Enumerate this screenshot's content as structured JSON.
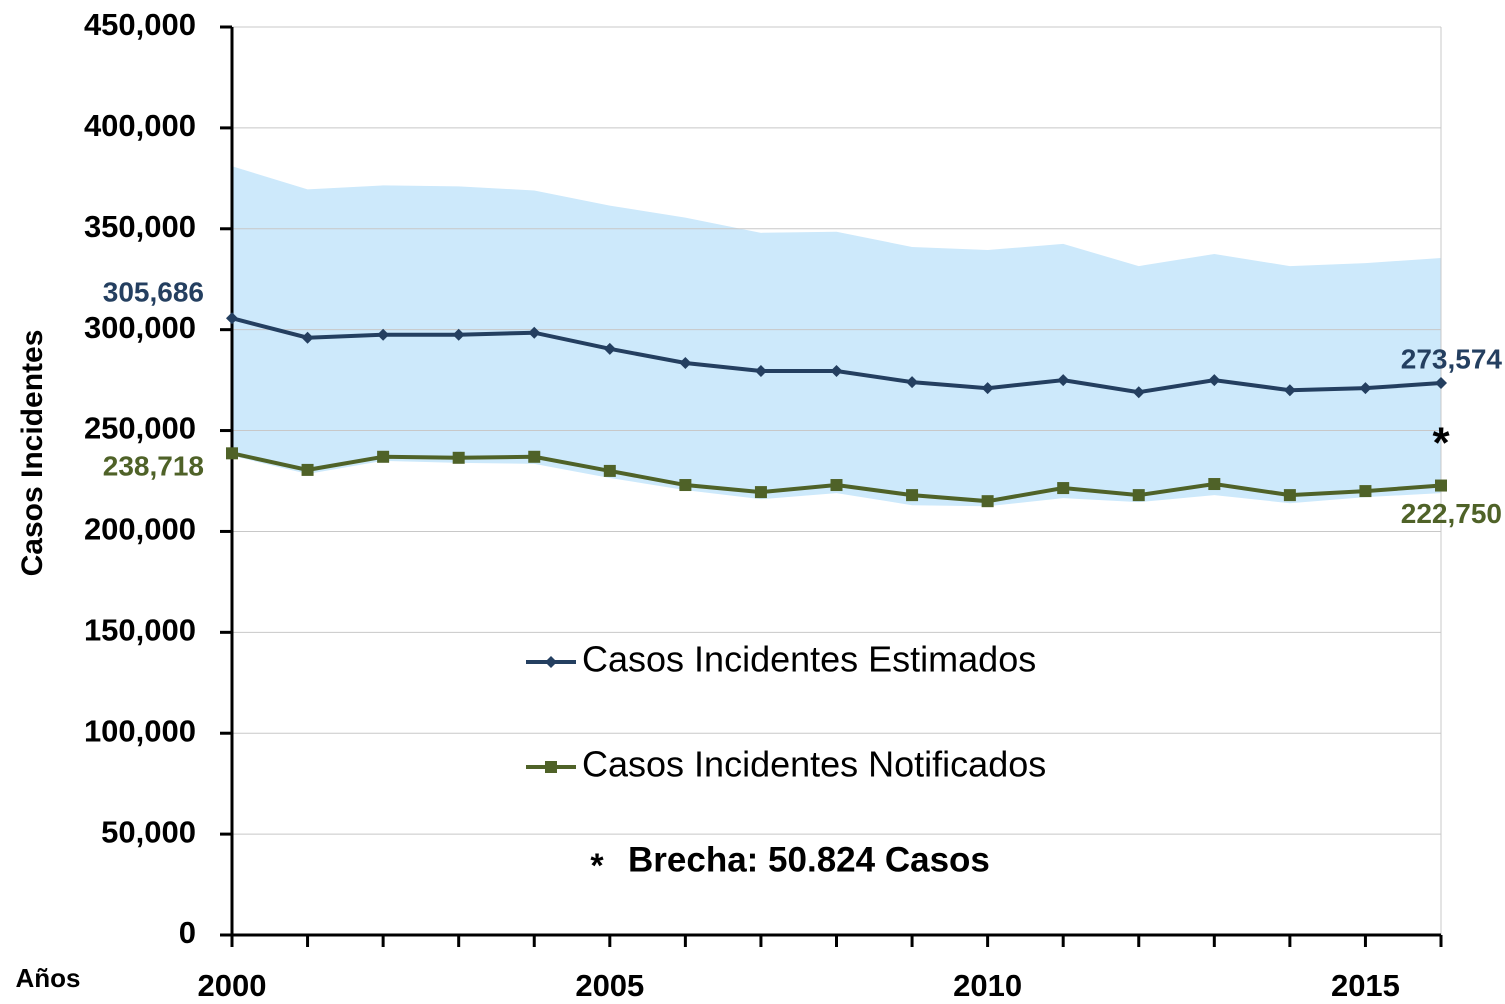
{
  "chart_data": {
    "type": "line",
    "y_label": "Casos Incidentes",
    "x_label": "Años",
    "x": [
      2000,
      2001,
      2002,
      2003,
      2004,
      2005,
      2006,
      2007,
      2008,
      2009,
      2010,
      2011,
      2012,
      2013,
      2014,
      2015,
      2016
    ],
    "xlim": [
      2000,
      2016
    ],
    "xticks": [
      2000,
      2005,
      2010,
      2015
    ],
    "ylim": [
      0,
      450000
    ],
    "yticks": [
      0,
      {
        "value": 50000,
        "label": "50,000"
      },
      {
        "value": 100000,
        "label": "100,000"
      },
      {
        "value": 150000,
        "label": "150,000"
      },
      {
        "value": 200000,
        "label": "200,000"
      },
      {
        "value": 250000,
        "label": "250,000"
      },
      {
        "value": 300000,
        "label": "300,000"
      },
      {
        "value": 350000,
        "label": "350,000"
      },
      {
        "value": 400000,
        "label": "400,000"
      },
      {
        "value": 450000,
        "label": "450,000"
      }
    ],
    "grid": true,
    "band": {
      "color": "#cde9fb",
      "upper": [
        381000,
        369500,
        371500,
        371000,
        369000,
        361500,
        355500,
        348000,
        348500,
        341000,
        339500,
        342500,
        331500,
        337500,
        331500,
        333000,
        335500
      ],
      "lower": [
        237500,
        228500,
        235000,
        234000,
        233500,
        226500,
        220500,
        216000,
        219000,
        213000,
        212500,
        216500,
        214500,
        218000,
        214000,
        217000,
        219000
      ]
    },
    "series": [
      {
        "name": "Casos Incidentes Estimados",
        "color": "#243f60",
        "marker": "diamond",
        "values": [
          305686,
          296000,
          297500,
          297500,
          298500,
          290500,
          283500,
          279500,
          279500,
          274000,
          271000,
          275000,
          269000,
          275000,
          270000,
          271000,
          273574
        ],
        "value_labels": [
          "305,686",
          null,
          null,
          null,
          null,
          null,
          null,
          null,
          null,
          null,
          null,
          null,
          null,
          null,
          null,
          null,
          "273,574"
        ]
      },
      {
        "name": "Casos Incidentes Notificados",
        "color": "#4f6228",
        "marker": "square",
        "values": [
          238718,
          230500,
          237000,
          236500,
          237000,
          230000,
          223000,
          219500,
          223000,
          218000,
          215000,
          221500,
          218000,
          223500,
          218000,
          220000,
          222750
        ],
        "value_labels": [
          "238,718",
          null,
          null,
          null,
          null,
          null,
          null,
          null,
          null,
          null,
          null,
          null,
          null,
          null,
          null,
          null,
          "222,750"
        ]
      }
    ],
    "gap_marker": "*",
    "annotation": {
      "symbol": "*",
      "text": "Brecha: 50.824 Casos"
    }
  }
}
